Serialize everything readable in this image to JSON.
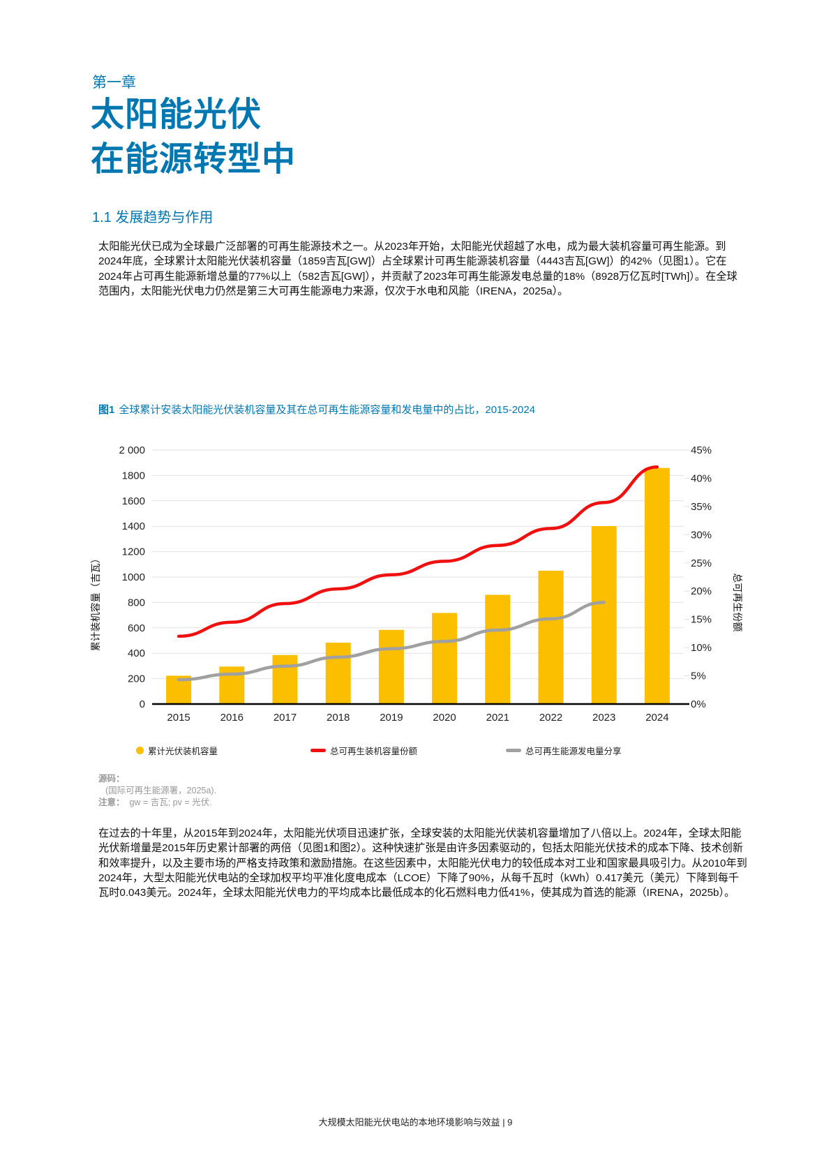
{
  "header": {
    "chapter": "第一章",
    "title_line1": "太阳能光伏",
    "title_line2": "在能源转型中",
    "section": "1.1 发展趋势与作用"
  },
  "paragraphs": {
    "p1": "太阳能光伏已成为全球最广泛部署的可再生能源技术之一。从2023年开始，太阳能光伏超越了水电，成为最大装机容量可再生能源。到2024年底，全球累计太阳能光伏装机容量（1859吉瓦[GW]）占全球累计可再生能源装机容量（4443吉瓦[GW]）的42%（见图1）。它在2024年占可再生能源新增总量的77%以上（582吉瓦[GW]），并贡献了2023年可再生能源发电总量的18%（8928万亿瓦时[TWh]）。在全球范围内，太阳能光伏电力仍然是第三大可再生能源电力来源，仅次于水电和风能（IRENA，2025a）。",
    "p2": "在过去的十年里，从2015年到2024年，太阳能光伏项目迅速扩张，全球安装的太阳能光伏装机容量增加了八倍以上。2024年，全球太阳能光伏新增量是2015年历史累计部署的两倍（见图1和图2）。这种快速扩张是由许多因素驱动的，包括太阳能光伏技术的成本下降、技术创新和效率提升，以及主要市场的严格支持政策和激励措施。在这些因素中，太阳能光伏电力的较低成本对工业和国家最具吸引力。从2010年到2024年，大型太阳能光伏电站的全球加权平均平准化度电成本（LCOE）下降了90%，从每千瓦时（kWh）0.417美元（美元）下降到每千瓦时0.043美元。2024年，全球太阳能光伏电力的平均成本比最低成本的化石燃料电力低41%，使其成为首选的能源（IRENA，2025b）。"
  },
  "figure": {
    "label": "图1",
    "caption": "全球累计安装太阳能光伏装机容量及其在总可再生能源容量和发电量中的占比，2015-2024",
    "source_label": "源码：",
    "source_text": "(国际可再生能源署，2025a).",
    "note_label": "注意：",
    "note_text": "gw = 吉瓦; pv = 光伏."
  },
  "chart_data": {
    "type": "bar",
    "title": "全球累计安装太阳能光伏装机容量及其在总可再生能源容量和发电量中的占比，2015-2024",
    "categories": [
      "2015",
      "2016",
      "2017",
      "2018",
      "2019",
      "2020",
      "2021",
      "2022",
      "2023",
      "2024"
    ],
    "series": [
      {
        "name": "累计光伏装机容量",
        "type": "bar",
        "axis": "left",
        "color": "#fbbf00",
        "values": [
          223,
          295,
          386,
          483,
          584,
          717,
          860,
          1050,
          1401,
          1859
        ]
      },
      {
        "name": "总可再生装机容量份额",
        "type": "line",
        "axis": "right",
        "color": "#f01010",
        "values": [
          12.0,
          14.5,
          17.8,
          20.4,
          22.9,
          25.3,
          28.1,
          31.1,
          35.7,
          42.0
        ]
      },
      {
        "name": "总可再生能源发电量分享",
        "type": "line",
        "axis": "right",
        "color": "#a0a0a0",
        "values": [
          4.3,
          5.3,
          6.7,
          8.3,
          9.8,
          11.1,
          13.1,
          15.1,
          18.0,
          null
        ]
      }
    ],
    "xlabel": "",
    "ylabel": "累计装机容量（吉瓦）",
    "ylabel_right": "总可再生份额",
    "ylim": [
      0,
      2000
    ],
    "ylim_right": [
      0,
      45
    ],
    "yticks": [
      "0",
      "200",
      "400",
      "600",
      "800",
      "1000",
      "1200",
      "1400",
      "1600",
      "1800",
      "2 000"
    ],
    "yticks_right": [
      "0%",
      "5%",
      "10%",
      "15%",
      "20%",
      "25%",
      "30%",
      "35%",
      "40%",
      "45%"
    ],
    "grid": true,
    "legend_position": "bottom"
  },
  "legend": {
    "bar": "累计光伏装机容量",
    "red": "总可再生装机容量份额",
    "gray": "总可再生能源发电量分享"
  },
  "footer": {
    "text": "大规模太阳能光伏电站的本地环境影响与效益 | 9"
  }
}
